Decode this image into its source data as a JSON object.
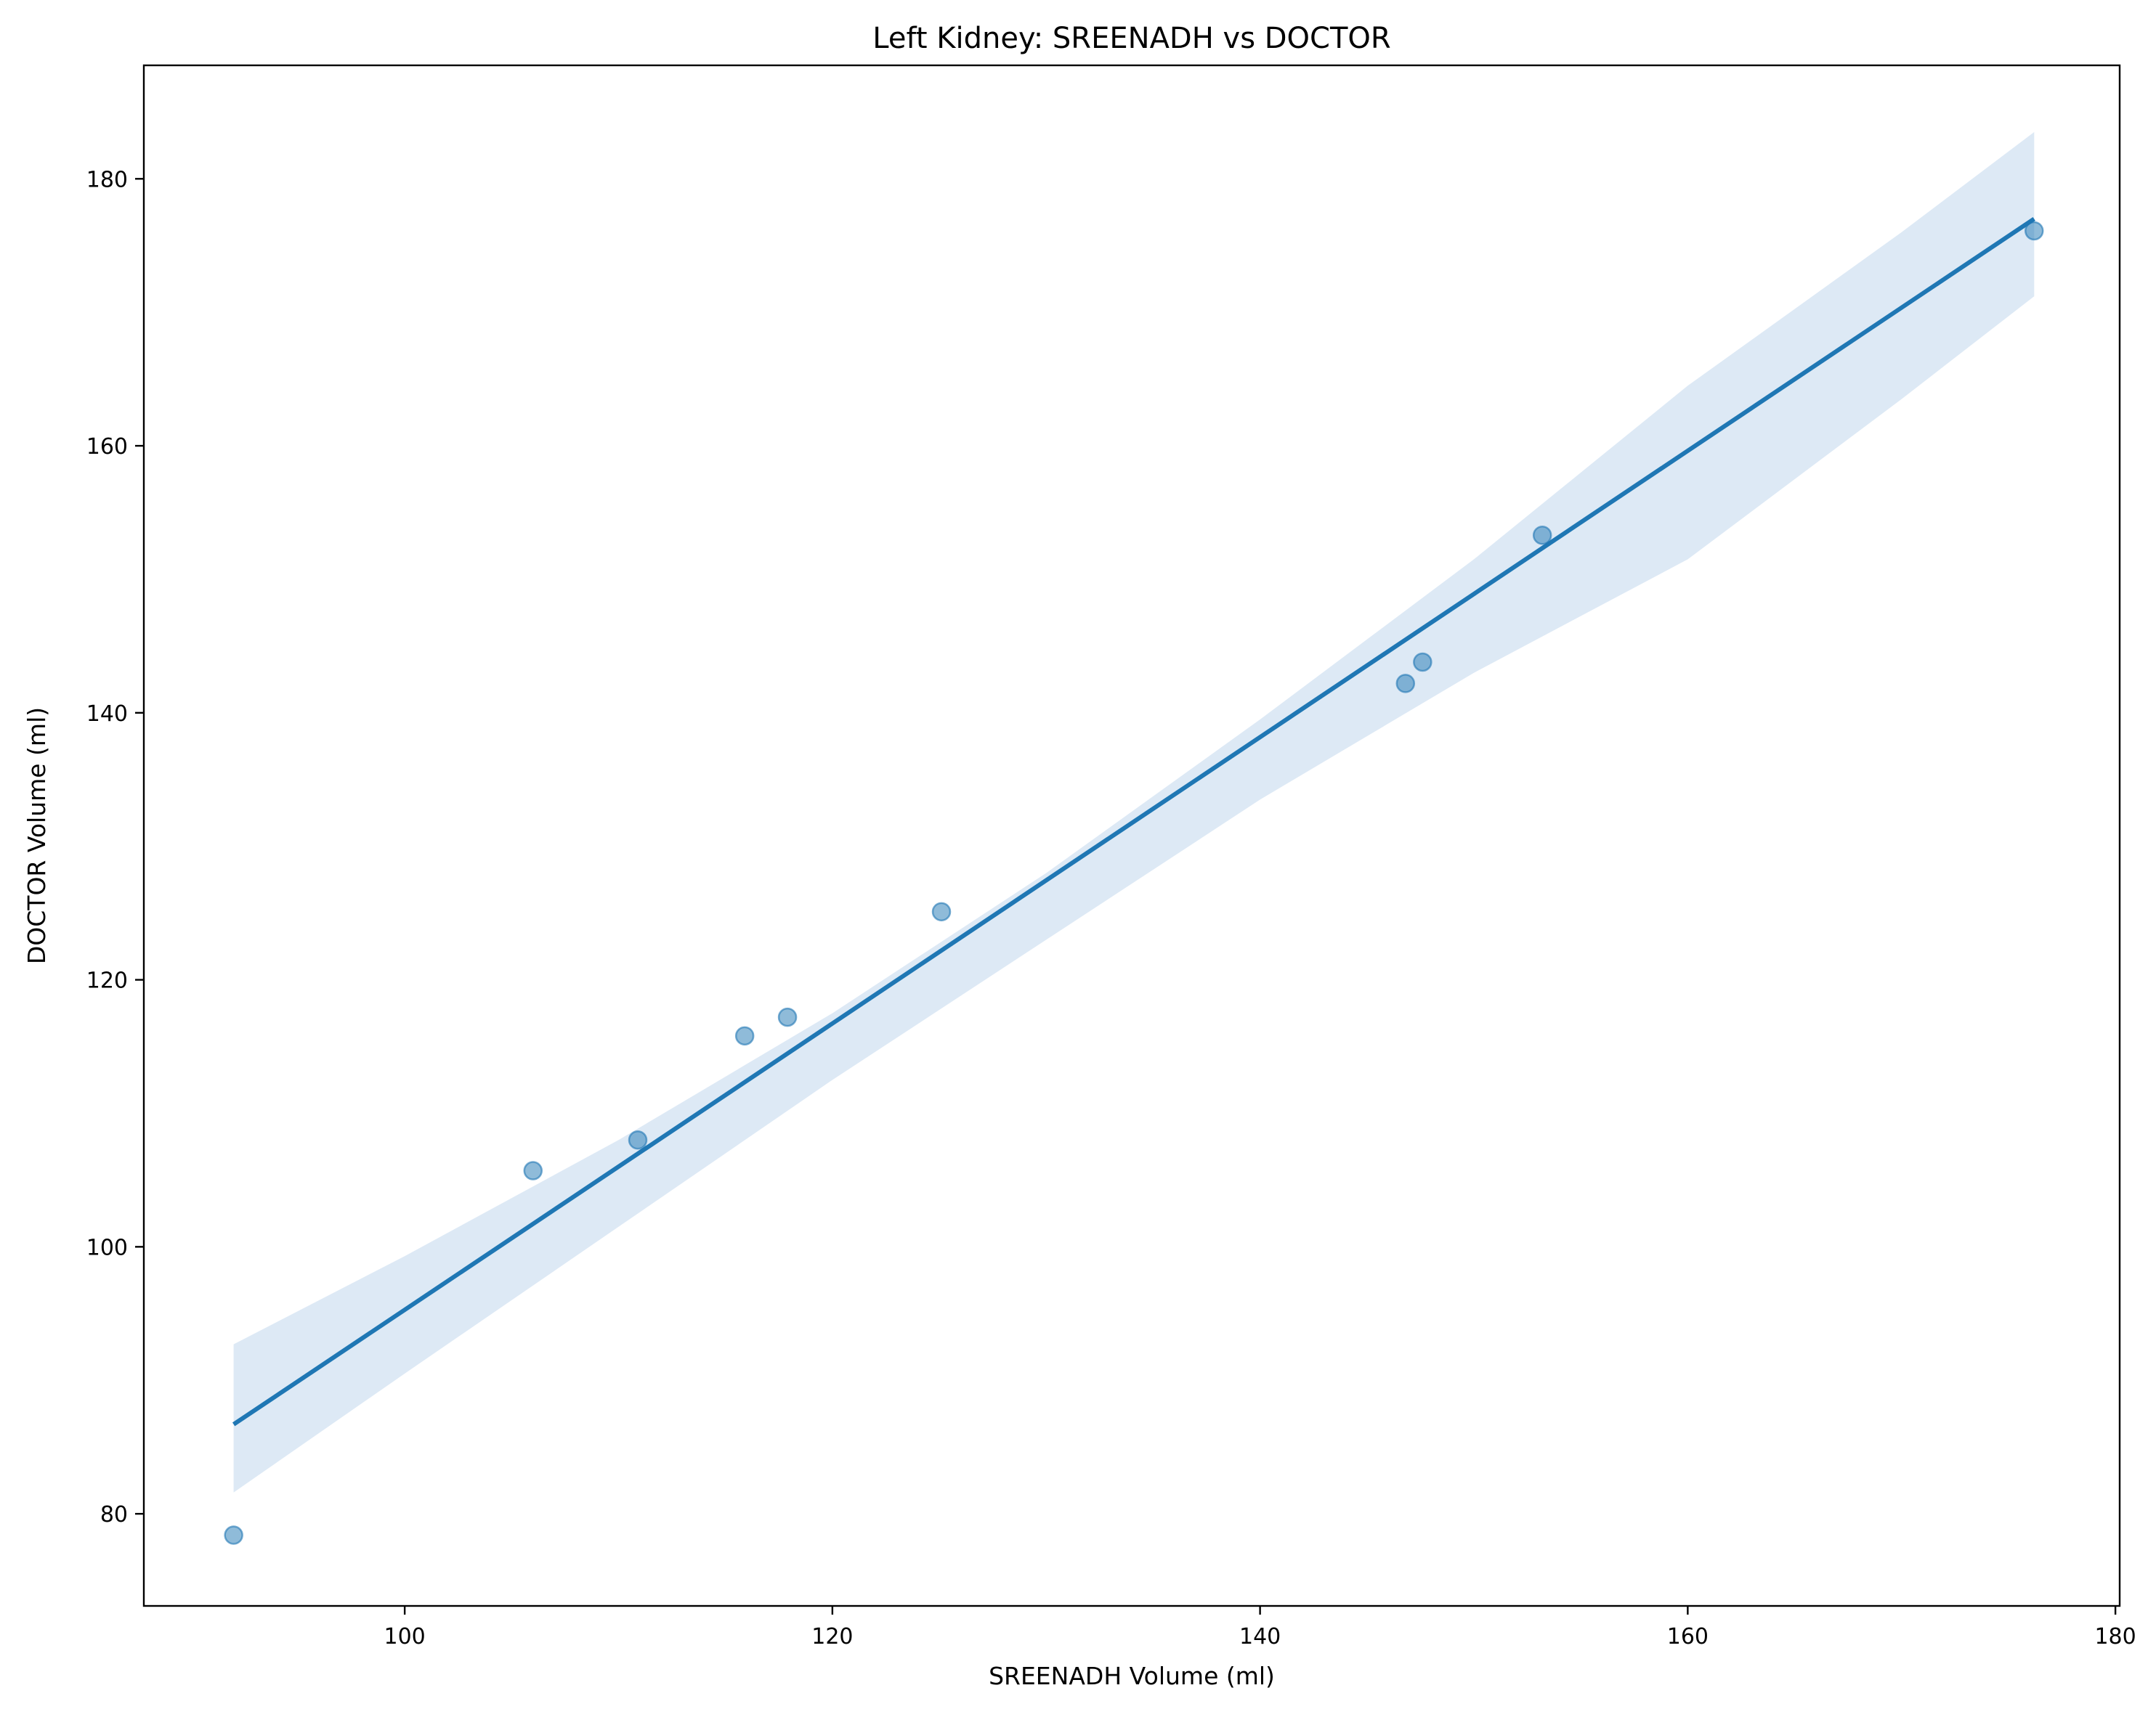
{
  "chart_data": {
    "type": "scatter",
    "title": "Left Kidney: SREENADH vs DOCTOR",
    "xlabel": "SREENADH Volume (ml)",
    "ylabel": "DOCTOR Volume (ml)",
    "xlim": [
      87.8,
      180.2
    ],
    "ylim": [
      73.1,
      188.5
    ],
    "x_ticks": [
      100,
      120,
      140,
      160,
      180
    ],
    "y_ticks": [
      80,
      100,
      120,
      140,
      160,
      180
    ],
    "grid": false,
    "points": [
      {
        "x": 92.0,
        "y": 78.4
      },
      {
        "x": 106.0,
        "y": 105.7
      },
      {
        "x": 110.9,
        "y": 108.0
      },
      {
        "x": 115.9,
        "y": 115.8
      },
      {
        "x": 117.9,
        "y": 117.2
      },
      {
        "x": 125.1,
        "y": 125.1
      },
      {
        "x": 146.8,
        "y": 142.2
      },
      {
        "x": 147.6,
        "y": 143.8
      },
      {
        "x": 153.2,
        "y": 153.3
      },
      {
        "x": 176.2,
        "y": 176.1
      }
    ],
    "regression_line": {
      "x": [
        92.0,
        176.2
      ],
      "y": [
        86.7,
        177.0
      ]
    },
    "confidence_band": {
      "x": [
        92.0,
        100.0,
        110.0,
        120.0,
        130.0,
        140.0,
        150.0,
        160.0,
        170.0,
        176.2
      ],
      "upper": [
        92.7,
        99.3,
        108.0,
        117.5,
        128.0,
        139.5,
        151.5,
        164.5,
        176.0,
        183.5
      ],
      "lower": [
        81.6,
        90.5,
        101.5,
        112.5,
        123.0,
        133.5,
        143.0,
        151.5,
        163.5,
        171.2
      ]
    },
    "colors": {
      "point": "#1f77b4",
      "line": "#1f77b4",
      "band": "#c6dbef"
    }
  }
}
